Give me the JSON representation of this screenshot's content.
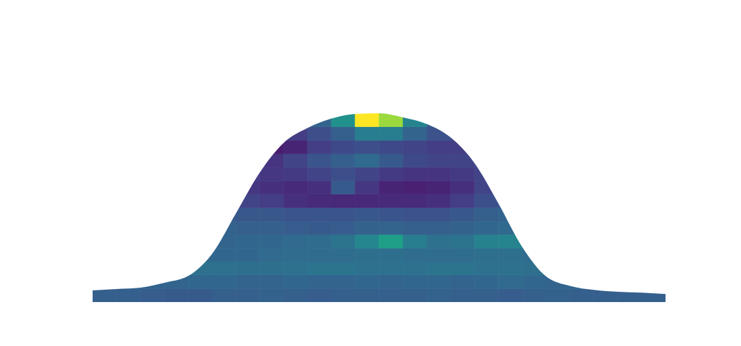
{
  "chart_data": {
    "type": "heatmap",
    "color": "viridis",
    "color_range": [
      0,
      1
    ],
    "xlim": [
      0,
      24
    ],
    "ylim": [
      0,
      14
    ],
    "grid": false,
    "tick_labels": false,
    "x_bins": [
      0,
      1,
      2,
      3,
      4,
      5,
      6,
      7,
      8,
      9,
      10,
      11,
      12,
      13,
      14,
      15,
      16,
      17,
      18,
      19,
      20,
      21,
      22,
      23,
      24
    ],
    "y_bins": [
      0,
      1,
      2,
      3,
      4,
      5,
      6,
      7,
      8,
      9,
      10,
      11,
      12,
      13,
      14
    ],
    "cells": [
      [
        0.3,
        0.3,
        0.29,
        0.28,
        0.28,
        0.3,
        0.3,
        0.31,
        0.3,
        0.29,
        0.3,
        0.3,
        0.3,
        0.3,
        0.31,
        0.3,
        0.3,
        0.29,
        0.3,
        0.31,
        0.3,
        0.3,
        0.3,
        0.3
      ],
      [
        0.33,
        0.33,
        0.32,
        0.32,
        0.33,
        0.33,
        0.32,
        0.32,
        0.33,
        0.32,
        0.32,
        0.33,
        0.32,
        0.33,
        0.33,
        0.32,
        0.33,
        0.34,
        0.33,
        0.32,
        0.33,
        0.33,
        0.32,
        0.33
      ],
      [
        0.34,
        0.35,
        0.36,
        0.36,
        0.37,
        0.37,
        0.36,
        0.36,
        0.37,
        0.38,
        0.38,
        0.37,
        0.37,
        0.37,
        0.38,
        0.38,
        0.37,
        0.37,
        0.36,
        0.35,
        0.35,
        0.34,
        0.34,
        0.34
      ],
      [
        0.32,
        0.32,
        0.32,
        0.33,
        0.33,
        0.33,
        0.33,
        0.34,
        0.35,
        0.35,
        0.35,
        0.36,
        0.36,
        0.35,
        0.35,
        0.35,
        0.36,
        0.36,
        0.35,
        0.33,
        0.32,
        0.32,
        0.32,
        0.32
      ],
      [
        0.3,
        0.3,
        0.3,
        0.3,
        0.31,
        0.32,
        0.33,
        0.33,
        0.34,
        0.35,
        0.38,
        0.46,
        0.56,
        0.42,
        0.37,
        0.38,
        0.44,
        0.45,
        0.38,
        0.33,
        0.3,
        0.3,
        0.3,
        0.3
      ],
      [
        0.3,
        0.3,
        0.3,
        0.3,
        0.3,
        0.31,
        0.3,
        0.3,
        0.29,
        0.28,
        0.29,
        0.31,
        0.32,
        0.3,
        0.3,
        0.31,
        0.33,
        0.34,
        0.33,
        0.3,
        0.3,
        0.3,
        0.3,
        0.3
      ],
      [
        0.28,
        0.28,
        0.28,
        0.28,
        0.28,
        0.28,
        0.27,
        0.27,
        0.26,
        0.26,
        0.26,
        0.27,
        0.26,
        0.25,
        0.25,
        0.27,
        0.3,
        0.32,
        0.3,
        0.28,
        0.28,
        0.28,
        0.28,
        0.28
      ],
      [
        0.25,
        0.25,
        0.25,
        0.25,
        0.25,
        0.24,
        0.2,
        0.18,
        0.14,
        0.12,
        0.11,
        0.11,
        0.12,
        0.12,
        0.14,
        0.18,
        0.24,
        0.27,
        0.26,
        0.25,
        0.25,
        0.25,
        0.25,
        0.25
      ],
      [
        0.22,
        0.22,
        0.22,
        0.22,
        0.22,
        0.2,
        0.16,
        0.14,
        0.12,
        0.14,
        0.28,
        0.16,
        0.1,
        0.09,
        0.1,
        0.14,
        0.2,
        0.22,
        0.22,
        0.22,
        0.22,
        0.22,
        0.22,
        0.22
      ],
      [
        0.2,
        0.2,
        0.2,
        0.2,
        0.2,
        0.2,
        0.18,
        0.16,
        0.17,
        0.2,
        0.24,
        0.2,
        0.17,
        0.15,
        0.15,
        0.17,
        0.2,
        0.2,
        0.2,
        0.2,
        0.2,
        0.2,
        0.2,
        0.2
      ],
      [
        0.2,
        0.2,
        0.2,
        0.2,
        0.2,
        0.2,
        0.16,
        0.15,
        0.2,
        0.26,
        0.3,
        0.34,
        0.28,
        0.22,
        0.2,
        0.2,
        0.21,
        0.2,
        0.2,
        0.2,
        0.2,
        0.2,
        0.2,
        0.2
      ],
      [
        0.2,
        0.2,
        0.2,
        0.2,
        0.2,
        0.2,
        0.12,
        0.08,
        0.1,
        0.18,
        0.22,
        0.24,
        0.22,
        0.2,
        0.18,
        0.18,
        0.2,
        0.2,
        0.2,
        0.2,
        0.2,
        0.2,
        0.2,
        0.2
      ],
      [
        0.25,
        0.25,
        0.25,
        0.25,
        0.25,
        0.25,
        0.2,
        0.18,
        0.18,
        0.24,
        0.3,
        0.42,
        0.42,
        0.32,
        0.25,
        0.22,
        0.25,
        0.25,
        0.25,
        0.25,
        0.25,
        0.25,
        0.25,
        0.25
      ],
      [
        0.3,
        0.3,
        0.3,
        0.3,
        0.3,
        0.3,
        0.3,
        0.3,
        0.3,
        0.32,
        0.5,
        1.0,
        0.85,
        0.45,
        0.3,
        0.3,
        0.3,
        0.3,
        0.3,
        0.3,
        0.3,
        0.3,
        0.3,
        0.3
      ]
    ],
    "outline": {
      "x": [
        0,
        1,
        2,
        3,
        4,
        5,
        6,
        7,
        8,
        9,
        10,
        11,
        12,
        13,
        14,
        15,
        16,
        17,
        18,
        19,
        20,
        21,
        22,
        23,
        24
      ],
      "y": [
        0.87,
        0.97,
        1.07,
        1.43,
        1.93,
        3.56,
        6.57,
        9.6,
        11.8,
        12.9,
        13.6,
        13.95,
        14,
        13.7,
        13.2,
        12.2,
        10.3,
        7.3,
        4.07,
        1.9,
        1.2,
        0.9,
        0.76,
        0.7,
        0.6
      ]
    }
  }
}
